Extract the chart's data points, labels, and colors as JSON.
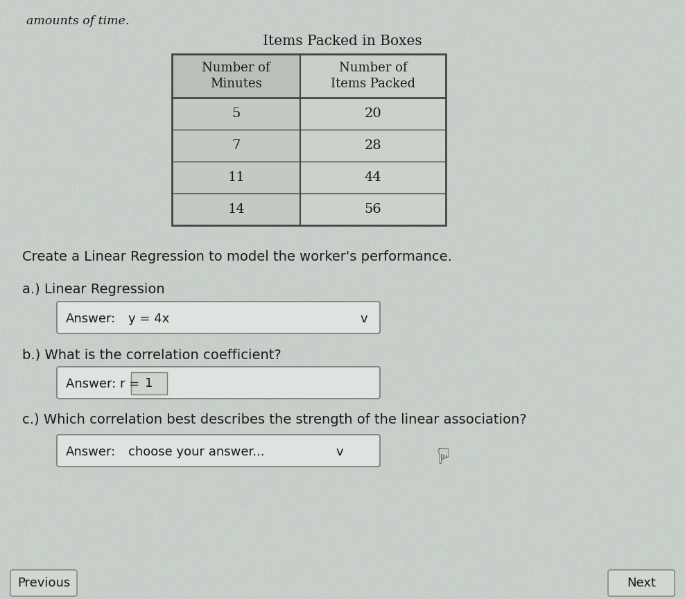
{
  "background_color": "#c8cfca",
  "top_text": "amounts of time.",
  "table_title": "Items Packed in Boxes",
  "col1_header": "Number of\nMinutes",
  "col2_header": "Number of\nItems Packed",
  "table_data": [
    [
      "5",
      "20"
    ],
    [
      "7",
      "28"
    ],
    [
      "11",
      "44"
    ],
    [
      "14",
      "56"
    ]
  ],
  "instruction": "Create a Linear Regression to model the worker's performance.",
  "part_a_label": "a.) Linear Regression",
  "part_a_answer_prefix": "Answer:",
  "part_a_answer": "y = 4x",
  "part_b_label": "b.) What is the correlation coefficient?",
  "part_b_answer_prefix": "Answer: r =",
  "part_b_answer": "1",
  "part_c_label": "c.) Which correlation best describes the strength of the linear association?",
  "part_c_answer_prefix": "Answer:",
  "part_c_answer": "choose your answer...",
  "prev_button": "Previous",
  "next_button": "Next",
  "text_color": "#1a1a1a",
  "box_bg": "#dde3de",
  "box_border": "#777777",
  "table_border": "#444444",
  "table_header_bg": "#b8c0b8",
  "table_cell_bg": "#c2cac2",
  "small_box_bg": "#cdd4cd",
  "btn_bg": "#d0d8d0",
  "btn_border": "#888888"
}
